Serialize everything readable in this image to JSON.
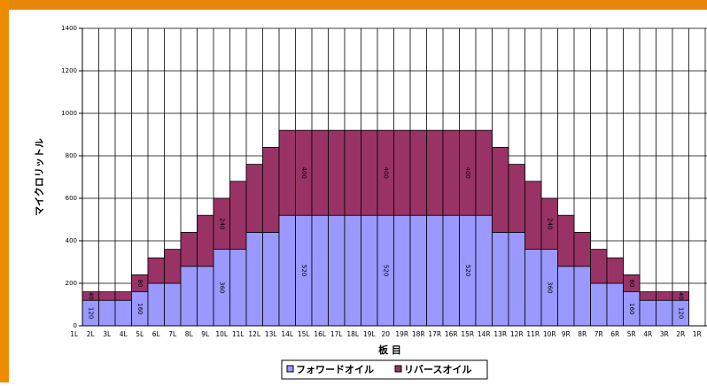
{
  "chart_data": {
    "type": "stacked-bar",
    "y_label": "マイクロリットル",
    "x_label": "板 目",
    "categories": [
      "1L",
      "2L",
      "3L",
      "4L",
      "5L",
      "6L",
      "7L",
      "8L",
      "9L",
      "10L",
      "11L",
      "12L",
      "13L",
      "14L",
      "15L",
      "16L",
      "17L",
      "18L",
      "19L",
      "20",
      "19R",
      "18R",
      "17R",
      "16R",
      "15R",
      "14R",
      "13R",
      "12R",
      "11R",
      "10R",
      "9R",
      "8R",
      "7R",
      "6R",
      "5R",
      "4R",
      "3R",
      "2R",
      "1R"
    ],
    "series": [
      {
        "name": "フォワードオイル",
        "color": "#9999ff",
        "values": [
          0,
          120,
          120,
          120,
          160,
          200,
          200,
          280,
          280,
          360,
          360,
          440,
          440,
          520,
          520,
          520,
          520,
          520,
          520,
          520,
          520,
          520,
          520,
          520,
          520,
          520,
          440,
          440,
          360,
          360,
          280,
          280,
          200,
          200,
          160,
          120,
          120,
          120,
          0
        ],
        "value_labels": [
          null,
          "120",
          null,
          null,
          "160",
          null,
          null,
          null,
          null,
          "360",
          null,
          null,
          null,
          null,
          "520",
          null,
          null,
          null,
          null,
          "520",
          null,
          null,
          null,
          null,
          "520",
          null,
          null,
          null,
          null,
          "360",
          null,
          null,
          null,
          null,
          "160",
          null,
          null,
          "120",
          null
        ]
      },
      {
        "name": "リバースオイル",
        "color": "#993366",
        "values": [
          0,
          40,
          40,
          40,
          80,
          120,
          160,
          160,
          240,
          240,
          320,
          320,
          400,
          400,
          400,
          400,
          400,
          400,
          400,
          400,
          400,
          400,
          400,
          400,
          400,
          400,
          400,
          320,
          320,
          240,
          240,
          160,
          160,
          120,
          80,
          40,
          40,
          40,
          0
        ],
        "value_labels": [
          null,
          "40",
          null,
          null,
          "80",
          null,
          null,
          null,
          null,
          "240",
          null,
          null,
          null,
          null,
          "400",
          null,
          null,
          null,
          null,
          "400",
          null,
          null,
          null,
          null,
          "400",
          null,
          null,
          null,
          null,
          "240",
          null,
          null,
          null,
          null,
          "80",
          null,
          null,
          "40",
          null
        ]
      }
    ],
    "ylim": [
      0,
      1400
    ],
    "yticks": [
      0,
      200,
      400,
      600,
      800,
      1000,
      1200,
      1400
    ],
    "grid": true
  }
}
